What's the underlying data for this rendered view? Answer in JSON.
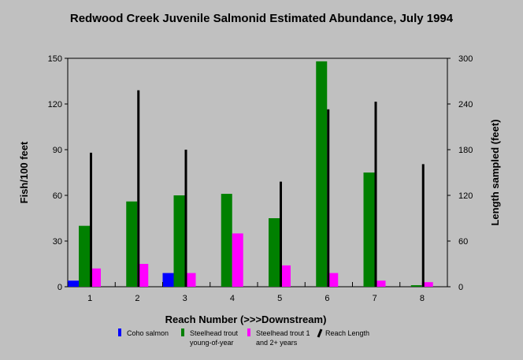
{
  "chart_data": {
    "type": "bar",
    "title": "Redwood Creek Juvenile Salmonid Estimated Abundance, July 1994",
    "xlabel": "Reach Number (>>>Downstream)",
    "ylabel": "Fish/100 feet",
    "y2label": "Length sampled (feet)",
    "categories": [
      "1",
      "2",
      "3",
      "4",
      "5",
      "6",
      "7",
      "8"
    ],
    "ylim": [
      0,
      150
    ],
    "yticks": [
      0,
      30,
      60,
      90,
      120,
      150
    ],
    "y2lim": [
      0,
      300
    ],
    "y2ticks": [
      0,
      60,
      120,
      180,
      240,
      300
    ],
    "series": [
      {
        "name": "Coho salmon",
        "color": "#0000ff",
        "axis": "left",
        "values": [
          4,
          0,
          9,
          0,
          0,
          0,
          0,
          0
        ]
      },
      {
        "name": "Steelhead trout young-of-year",
        "name_lines": [
          "Steelhead trout",
          "young-of-year"
        ],
        "color": "#008000",
        "axis": "left",
        "values": [
          40,
          56,
          60,
          61,
          45,
          148,
          75,
          1
        ]
      },
      {
        "name": "Steelhead trout 1 and 2+ years",
        "name_lines": [
          "Steelhead trout 1",
          "and 2+ years"
        ],
        "color": "#ff00ff",
        "axis": "left",
        "values": [
          12,
          15,
          9,
          35,
          14,
          9,
          4,
          3
        ]
      },
      {
        "name": "Reach Length",
        "color": "#000000",
        "axis": "right",
        "type": "thin-bar",
        "values": [
          176,
          258,
          180,
          0,
          138,
          233,
          243,
          161
        ]
      }
    ],
    "grid": false,
    "legend": "bottom"
  }
}
